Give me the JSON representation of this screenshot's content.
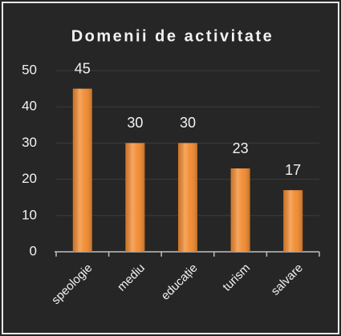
{
  "chart_data": {
    "type": "bar",
    "title": "Domenii de activitate",
    "categories": [
      "speologie",
      "mediu",
      "educație",
      "turism",
      "salvare"
    ],
    "values": [
      45,
      30,
      30,
      23,
      17
    ],
    "color": "#f28a2e",
    "ylim": [
      0,
      50
    ],
    "yticks": [
      0,
      10,
      20,
      30,
      40,
      50
    ],
    "grid": true
  }
}
